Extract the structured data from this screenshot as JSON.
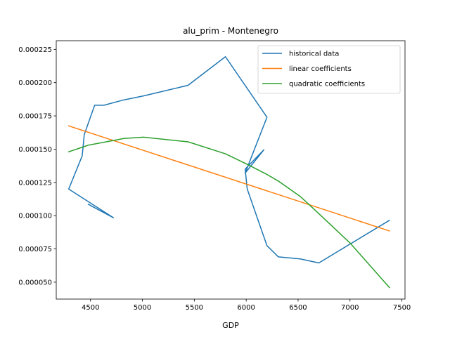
{
  "chart_data": {
    "type": "line",
    "title": "alu_prim - Montenegro",
    "xlabel": "GDP",
    "ylabel": "",
    "xlim": [
      4170,
      7530
    ],
    "ylim": [
      3.73e-05,
      0.0002315
    ],
    "xticks": [
      4500,
      5000,
      5500,
      6000,
      6500,
      7000,
      7500
    ],
    "xtick_labels": [
      "4500",
      "5000",
      "5500",
      "6000",
      "6500",
      "7000",
      "7500"
    ],
    "yticks": [
      5e-05,
      7.5e-05,
      0.0001,
      0.000125,
      0.00015,
      0.000175,
      0.0002,
      0.000225
    ],
    "ytick_labels": [
      "0.000050",
      "0.000075",
      "0.000100",
      "0.000125",
      "0.000150",
      "0.000175",
      "0.000200",
      "0.000225"
    ],
    "grid": false,
    "legend_position": "top-right",
    "series": [
      {
        "name": "historical data",
        "color": "#1f77b4",
        "x": [
          4480,
          4720,
          4290,
          4420,
          4440,
          4540,
          4630,
          4820,
          5010,
          5440,
          5800,
          6200,
          5990,
          6170,
          5990,
          6010,
          6200,
          6310,
          6520,
          6700,
          7380
        ],
        "y": [
          0.0001085,
          9.85e-05,
          0.00012,
          0.000145,
          0.000161,
          0.000183,
          0.000183,
          0.000187,
          0.00019,
          0.000198,
          0.0002195,
          0.000174,
          0.000132,
          0.0001495,
          0.000135,
          0.00012,
          7.75e-05,
          6.9e-05,
          6.75e-05,
          6.45e-05,
          9.65e-05
        ]
      },
      {
        "name": "linear coefficients",
        "color": "#ff7f0e",
        "x": [
          4290,
          7380
        ],
        "y": [
          0.0001675,
          8.85e-05
        ]
      },
      {
        "name": "quadratic coefficients",
        "color": "#2ca02c",
        "x": [
          4290,
          4480,
          4720,
          4820,
          5010,
          5440,
          5800,
          6000,
          6200,
          6310,
          6520,
          6700,
          7000,
          7380
        ],
        "y": [
          0.000148,
          0.000153,
          0.0001565,
          0.000158,
          0.000159,
          0.0001555,
          0.0001465,
          0.000139,
          0.000131,
          0.000126,
          0.0001145,
          0.0001015,
          7.95e-05,
          4.6e-05
        ]
      }
    ]
  }
}
